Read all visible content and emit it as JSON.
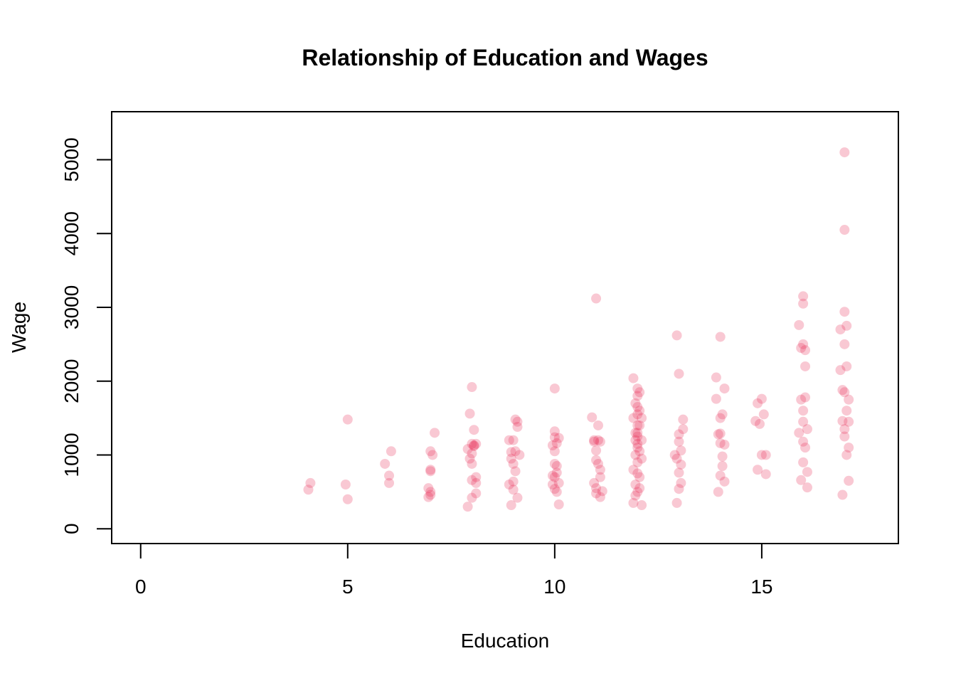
{
  "chart_data": {
    "type": "scatter",
    "title": "Relationship of Education and Wages",
    "xlabel": "Education",
    "ylabel": "Wage",
    "xlim": [
      -0.7,
      18.3
    ],
    "ylim": [
      -200,
      5650
    ],
    "xticks": [
      0,
      5,
      10,
      15
    ],
    "yticks": [
      0,
      1000,
      2000,
      3000,
      4000,
      5000
    ],
    "point_color": "#E8254F",
    "point_opacity": 0.25,
    "grid": false,
    "legend": "none",
    "x": [
      4.05,
      4.1,
      4.95,
      5.0,
      5.0,
      5.9,
      6.0,
      6.0,
      6.05,
      6.95,
      6.95,
      7.0,
      7.0,
      7.0,
      7.0,
      7.0,
      7.05,
      7.1,
      7.9,
      7.9,
      7.95,
      7.95,
      8.0,
      8.0,
      8.0,
      8.0,
      8.0,
      8.0,
      8.05,
      8.05,
      8.05,
      8.1,
      8.1,
      8.1,
      8.1,
      8.9,
      8.9,
      8.95,
      8.95,
      8.95,
      9.0,
      9.0,
      9.0,
      9.0,
      9.05,
      9.05,
      9.05,
      9.1,
      9.1,
      9.1,
      9.15,
      9.95,
      9.95,
      9.95,
      10.0,
      10.0,
      10.0,
      10.0,
      10.0,
      10.0,
      10.0,
      10.05,
      10.05,
      10.05,
      10.05,
      10.1,
      10.1,
      10.1,
      10.9,
      10.95,
      10.95,
      10.95,
      11.0,
      11.0,
      11.0,
      11.0,
      11.0,
      11.05,
      11.05,
      11.05,
      11.1,
      11.1,
      11.1,
      11.1,
      11.15,
      11.9,
      11.9,
      11.9,
      11.9,
      11.95,
      11.95,
      11.95,
      11.95,
      11.95,
      11.95,
      12.0,
      12.0,
      12.0,
      12.0,
      12.0,
      12.0,
      12.0,
      12.0,
      12.0,
      12.0,
      12.0,
      12.0,
      12.05,
      12.05,
      12.05,
      12.05,
      12.05,
      12.05,
      12.1,
      12.1,
      12.1,
      12.1,
      12.9,
      12.95,
      12.95,
      12.95,
      13.0,
      13.0,
      13.0,
      13.0,
      13.0,
      13.05,
      13.05,
      13.05,
      13.1,
      13.1,
      13.9,
      13.9,
      13.95,
      13.95,
      14.0,
      14.0,
      14.0,
      14.0,
      14.0,
      14.05,
      14.05,
      14.05,
      14.1,
      14.1,
      14.1,
      14.85,
      14.9,
      14.9,
      14.95,
      15.0,
      15.0,
      15.05,
      15.1,
      15.1,
      15.9,
      15.9,
      15.95,
      15.95,
      15.95,
      16.0,
      16.0,
      16.0,
      16.0,
      16.0,
      16.0,
      16.0,
      16.05,
      16.05,
      16.05,
      16.05,
      16.1,
      16.1,
      16.1,
      16.9,
      16.9,
      16.95,
      16.95,
      16.95,
      17.0,
      17.0,
      17.0,
      17.0,
      17.0,
      17.0,
      17.0,
      17.05,
      17.05,
      17.05,
      17.05,
      17.1,
      17.1,
      17.1,
      17.1
    ],
    "y": [
      530,
      620,
      600,
      400,
      1480,
      880,
      720,
      620,
      1050,
      550,
      430,
      800,
      460,
      500,
      1050,
      780,
      1000,
      1300,
      1080,
      300,
      1560,
      950,
      1150,
      1920,
      1020,
      660,
      880,
      420,
      1120,
      1130,
      1340,
      480,
      700,
      620,
      1150,
      600,
      1200,
      320,
      950,
      1040,
      1200,
      880,
      530,
      640,
      1480,
      1050,
      780,
      1380,
      420,
      1450,
      1000,
      720,
      600,
      1130,
      1900,
      1240,
      1050,
      880,
      700,
      540,
      1320,
      1160,
      500,
      850,
      760,
      330,
      1230,
      620,
      1510,
      620,
      1200,
      1180,
      3120,
      1060,
      930,
      550,
      480,
      1400,
      1200,
      880,
      430,
      700,
      800,
      1180,
      510,
      2040,
      1500,
      800,
      350,
      1700,
      1300,
      1000,
      600,
      450,
      1200,
      1250,
      1900,
      1550,
      1400,
      1100,
      900,
      750,
      500,
      1800,
      1650,
      1150,
      1300,
      1850,
      1600,
      1400,
      1050,
      700,
      550,
      1500,
      1200,
      320,
      950,
      1000,
      2620,
      950,
      350,
      1180,
      2100,
      760,
      540,
      1280,
      1060,
      870,
      620,
      1350,
      1480,
      2050,
      1760,
      500,
      1280,
      1290,
      2600,
      1160,
      720,
      1500,
      1550,
      980,
      850,
      1900,
      640,
      1140,
      1460,
      1700,
      800,
      1420,
      1000,
      1760,
      1550,
      740,
      1000,
      2760,
      1300,
      660,
      1750,
      2450,
      1450,
      1180,
      900,
      3150,
      3050,
      1600,
      2500,
      2200,
      2420,
      1100,
      1780,
      770,
      560,
      1350,
      2700,
      2150,
      1880,
      1460,
      460,
      2940,
      2500,
      5100,
      4050,
      1850,
      1350,
      1250,
      2750,
      2200,
      1000,
      1600,
      1100,
      1750,
      650,
      1450
    ]
  }
}
